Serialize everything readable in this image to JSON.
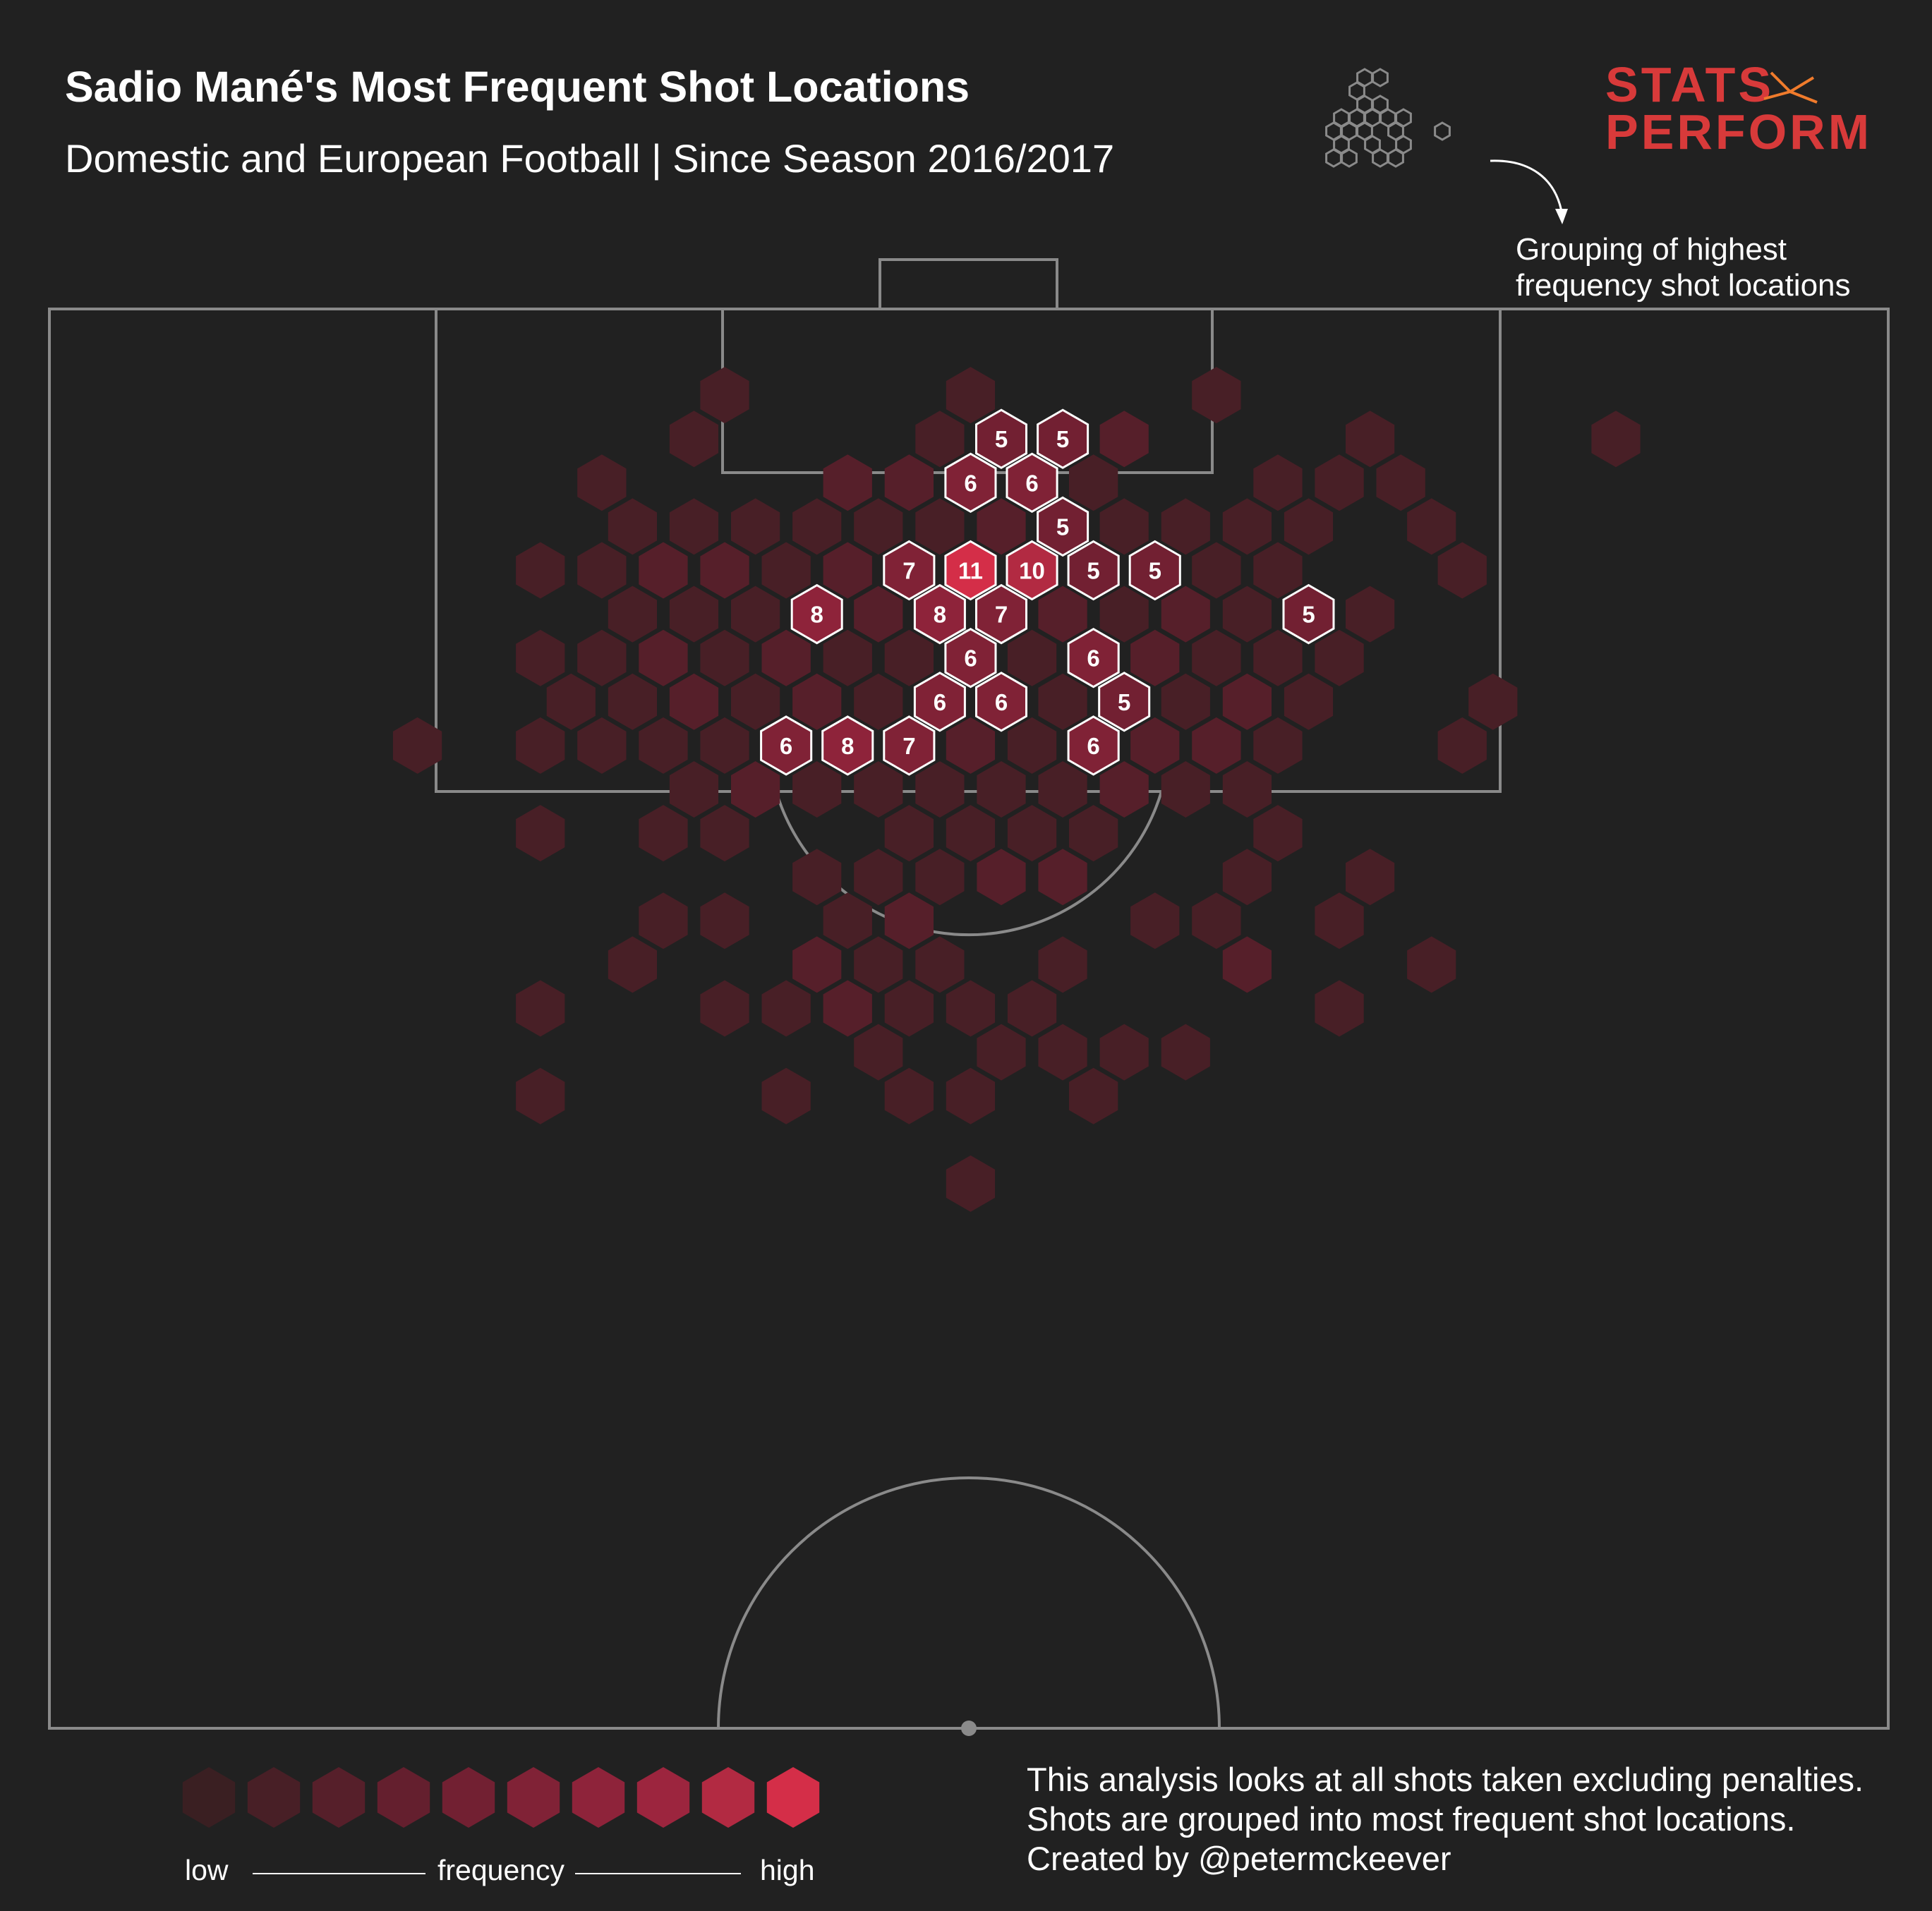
{
  "header": {
    "title": "Sadio Mané's Most Frequent Shot Locations",
    "subtitle": "Domestic and European Football | Since Season 2016/2017"
  },
  "logo": {
    "line1": "STATS",
    "line2": "PERFORM",
    "color": "#d83a3a",
    "accent": "#f07b2c"
  },
  "annotation": {
    "line1": "Grouping of highest",
    "line2": "frequency shot locations"
  },
  "legend": {
    "low": "low",
    "mid": "frequency",
    "high": "high",
    "colors": [
      "#3a1f22",
      "#481f26",
      "#561f2a",
      "#641f2e",
      "#722032",
      "#802236",
      "#8e233a",
      "#9c253e",
      "#b22a42",
      "#d42e48"
    ]
  },
  "footer": {
    "note": "This analysis looks at all shots taken excluding penalties. Shots are grouped into most frequent shot locations. Created by @petermckeever"
  },
  "colors": {
    "background": "#212121",
    "pitch_lines": "#8a8a8a",
    "highlight_stroke": "#ffffff"
  },
  "chart_data": {
    "type": "heatmap",
    "title": "Sadio Mané's Most Frequent Shot Locations",
    "subtitle": "Domestic and European Football | Since Season 2016/2017",
    "value_scale": [
      1,
      11
    ],
    "hexbins": [
      {
        "col": 6,
        "row": 1,
        "v": 2
      },
      {
        "col": 10,
        "row": 1,
        "v": 2
      },
      {
        "col": 14,
        "row": 1,
        "v": 2
      },
      {
        "col": 5,
        "row": 2,
        "v": 2
      },
      {
        "col": 9,
        "row": 2,
        "v": 2
      },
      {
        "col": 10,
        "row": 2,
        "v": 5
      },
      {
        "col": 11,
        "row": 2,
        "v": 5
      },
      {
        "col": 12,
        "row": 2,
        "v": 3
      },
      {
        "col": 16,
        "row": 2,
        "v": 2
      },
      {
        "col": 20,
        "row": 2,
        "v": 2
      },
      {
        "col": 4,
        "row": 3,
        "v": 2
      },
      {
        "col": 8,
        "row": 3,
        "v": 3
      },
      {
        "col": 9,
        "row": 3,
        "v": 3
      },
      {
        "col": 10,
        "row": 3,
        "v": 6
      },
      {
        "col": 11,
        "row": 3,
        "v": 6
      },
      {
        "col": 12,
        "row": 3,
        "v": 2
      },
      {
        "col": 15,
        "row": 3,
        "v": 2
      },
      {
        "col": 16,
        "row": 3,
        "v": 2
      },
      {
        "col": 17,
        "row": 3,
        "v": 2
      },
      {
        "col": 4,
        "row": 4,
        "v": 2
      },
      {
        "col": 5,
        "row": 4,
        "v": 2
      },
      {
        "col": 6,
        "row": 4,
        "v": 2
      },
      {
        "col": 7,
        "row": 4,
        "v": 2
      },
      {
        "col": 8,
        "row": 4,
        "v": 2
      },
      {
        "col": 9,
        "row": 4,
        "v": 2
      },
      {
        "col": 10,
        "row": 4,
        "v": 3
      },
      {
        "col": 11,
        "row": 4,
        "v": 5
      },
      {
        "col": 12,
        "row": 4,
        "v": 2
      },
      {
        "col": 13,
        "row": 4,
        "v": 2
      },
      {
        "col": 14,
        "row": 4,
        "v": 2
      },
      {
        "col": 15,
        "row": 4,
        "v": 2
      },
      {
        "col": 17,
        "row": 4,
        "v": 2
      },
      {
        "col": 3,
        "row": 5,
        "v": 2
      },
      {
        "col": 4,
        "row": 5,
        "v": 2
      },
      {
        "col": 5,
        "row": 5,
        "v": 3
      },
      {
        "col": 6,
        "row": 5,
        "v": 3
      },
      {
        "col": 7,
        "row": 5,
        "v": 2
      },
      {
        "col": 8,
        "row": 5,
        "v": 3
      },
      {
        "col": 9,
        "row": 5,
        "v": 7
      },
      {
        "col": 10,
        "row": 5,
        "v": 11
      },
      {
        "col": 11,
        "row": 5,
        "v": 10
      },
      {
        "col": 12,
        "row": 5,
        "v": 5
      },
      {
        "col": 13,
        "row": 5,
        "v": 5
      },
      {
        "col": 14,
        "row": 5,
        "v": 2
      },
      {
        "col": 15,
        "row": 5,
        "v": 2
      },
      {
        "col": 18,
        "row": 5,
        "v": 2
      },
      {
        "col": 4,
        "row": 6,
        "v": 2
      },
      {
        "col": 5,
        "row": 6,
        "v": 2
      },
      {
        "col": 6,
        "row": 6,
        "v": 2
      },
      {
        "col": 7,
        "row": 6,
        "v": 8
      },
      {
        "col": 8,
        "row": 6,
        "v": 3
      },
      {
        "col": 9,
        "row": 6,
        "v": 8
      },
      {
        "col": 10,
        "row": 6,
        "v": 7
      },
      {
        "col": 11,
        "row": 6,
        "v": 3
      },
      {
        "col": 12,
        "row": 6,
        "v": 2
      },
      {
        "col": 13,
        "row": 6,
        "v": 3
      },
      {
        "col": 14,
        "row": 6,
        "v": 2
      },
      {
        "col": 15,
        "row": 6,
        "v": 5
      },
      {
        "col": 16,
        "row": 6,
        "v": 2
      },
      {
        "col": 3,
        "row": 7,
        "v": 2
      },
      {
        "col": 4,
        "row": 7,
        "v": 2
      },
      {
        "col": 5,
        "row": 7,
        "v": 3
      },
      {
        "col": 6,
        "row": 7,
        "v": 2
      },
      {
        "col": 7,
        "row": 7,
        "v": 3
      },
      {
        "col": 8,
        "row": 7,
        "v": 2
      },
      {
        "col": 9,
        "row": 7,
        "v": 2
      },
      {
        "col": 10,
        "row": 7,
        "v": 6
      },
      {
        "col": 11,
        "row": 7,
        "v": 2
      },
      {
        "col": 12,
        "row": 7,
        "v": 6
      },
      {
        "col": 13,
        "row": 7,
        "v": 3
      },
      {
        "col": 14,
        "row": 7,
        "v": 2
      },
      {
        "col": 15,
        "row": 7,
        "v": 2
      },
      {
        "col": 16,
        "row": 7,
        "v": 2
      },
      {
        "col": 3,
        "row": 8,
        "v": 2
      },
      {
        "col": 4,
        "row": 8,
        "v": 2
      },
      {
        "col": 5,
        "row": 8,
        "v": 3
      },
      {
        "col": 6,
        "row": 8,
        "v": 2
      },
      {
        "col": 7,
        "row": 8,
        "v": 3
      },
      {
        "col": 8,
        "row": 8,
        "v": 2
      },
      {
        "col": 9,
        "row": 8,
        "v": 6
      },
      {
        "col": 10,
        "row": 8,
        "v": 6
      },
      {
        "col": 11,
        "row": 8,
        "v": 2
      },
      {
        "col": 12,
        "row": 8,
        "v": 5
      },
      {
        "col": 13,
        "row": 8,
        "v": 2
      },
      {
        "col": 14,
        "row": 8,
        "v": 3
      },
      {
        "col": 15,
        "row": 8,
        "v": 2
      },
      {
        "col": 18,
        "row": 8,
        "v": 2
      },
      {
        "col": 1,
        "row": 9,
        "v": 2
      },
      {
        "col": 3,
        "row": 9,
        "v": 2
      },
      {
        "col": 4,
        "row": 9,
        "v": 2
      },
      {
        "col": 5,
        "row": 9,
        "v": 2
      },
      {
        "col": 6,
        "row": 9,
        "v": 2
      },
      {
        "col": 7,
        "row": 9,
        "v": 6
      },
      {
        "col": 8,
        "row": 9,
        "v": 8
      },
      {
        "col": 9,
        "row": 9,
        "v": 7
      },
      {
        "col": 10,
        "row": 9,
        "v": 3
      },
      {
        "col": 11,
        "row": 9,
        "v": 2
      },
      {
        "col": 12,
        "row": 9,
        "v": 6
      },
      {
        "col": 13,
        "row": 9,
        "v": 3
      },
      {
        "col": 14,
        "row": 9,
        "v": 3
      },
      {
        "col": 15,
        "row": 9,
        "v": 2
      },
      {
        "col": 18,
        "row": 9,
        "v": 2
      },
      {
        "col": 5,
        "row": 10,
        "v": 2
      },
      {
        "col": 6,
        "row": 10,
        "v": 3
      },
      {
        "col": 7,
        "row": 10,
        "v": 2
      },
      {
        "col": 8,
        "row": 10,
        "v": 2
      },
      {
        "col": 9,
        "row": 10,
        "v": 2
      },
      {
        "col": 10,
        "row": 10,
        "v": 2
      },
      {
        "col": 11,
        "row": 10,
        "v": 2
      },
      {
        "col": 12,
        "row": 10,
        "v": 3
      },
      {
        "col": 13,
        "row": 10,
        "v": 2
      },
      {
        "col": 14,
        "row": 10,
        "v": 2
      },
      {
        "col": 3,
        "row": 11,
        "v": 2
      },
      {
        "col": 5,
        "row": 11,
        "v": 2
      },
      {
        "col": 6,
        "row": 11,
        "v": 2
      },
      {
        "col": 9,
        "row": 11,
        "v": 2
      },
      {
        "col": 10,
        "row": 11,
        "v": 2
      },
      {
        "col": 11,
        "row": 11,
        "v": 2
      },
      {
        "col": 12,
        "row": 11,
        "v": 2
      },
      {
        "col": 15,
        "row": 11,
        "v": 2
      },
      {
        "col": 7,
        "row": 12,
        "v": 2
      },
      {
        "col": 8,
        "row": 12,
        "v": 2
      },
      {
        "col": 9,
        "row": 12,
        "v": 2
      },
      {
        "col": 10,
        "row": 12,
        "v": 3
      },
      {
        "col": 11,
        "row": 12,
        "v": 3
      },
      {
        "col": 14,
        "row": 12,
        "v": 2
      },
      {
        "col": 16,
        "row": 12,
        "v": 2
      },
      {
        "col": 5,
        "row": 13,
        "v": 2
      },
      {
        "col": 6,
        "row": 13,
        "v": 2
      },
      {
        "col": 8,
        "row": 13,
        "v": 2
      },
      {
        "col": 9,
        "row": 13,
        "v": 3
      },
      {
        "col": 13,
        "row": 13,
        "v": 2
      },
      {
        "col": 14,
        "row": 13,
        "v": 2
      },
      {
        "col": 16,
        "row": 13,
        "v": 2
      },
      {
        "col": 4,
        "row": 14,
        "v": 2
      },
      {
        "col": 7,
        "row": 14,
        "v": 3
      },
      {
        "col": 8,
        "row": 14,
        "v": 2
      },
      {
        "col": 9,
        "row": 14,
        "v": 2
      },
      {
        "col": 11,
        "row": 14,
        "v": 2
      },
      {
        "col": 14,
        "row": 14,
        "v": 3
      },
      {
        "col": 17,
        "row": 14,
        "v": 2
      },
      {
        "col": 3,
        "row": 15,
        "v": 2
      },
      {
        "col": 6,
        "row": 15,
        "v": 2
      },
      {
        "col": 7,
        "row": 15,
        "v": 2
      },
      {
        "col": 8,
        "row": 15,
        "v": 3
      },
      {
        "col": 9,
        "row": 15,
        "v": 2
      },
      {
        "col": 10,
        "row": 15,
        "v": 2
      },
      {
        "col": 11,
        "row": 15,
        "v": 2
      },
      {
        "col": 16,
        "row": 15,
        "v": 2
      },
      {
        "col": 8,
        "row": 16,
        "v": 2
      },
      {
        "col": 10,
        "row": 16,
        "v": 2
      },
      {
        "col": 11,
        "row": 16,
        "v": 2
      },
      {
        "col": 12,
        "row": 16,
        "v": 2
      },
      {
        "col": 13,
        "row": 16,
        "v": 2
      },
      {
        "col": 3,
        "row": 17,
        "v": 2
      },
      {
        "col": 7,
        "row": 17,
        "v": 2
      },
      {
        "col": 9,
        "row": 17,
        "v": 2
      },
      {
        "col": 10,
        "row": 17,
        "v": 2
      },
      {
        "col": 12,
        "row": 17,
        "v": 2
      },
      {
        "col": 10,
        "row": 19,
        "v": 2
      }
    ],
    "highlighted_labels": [
      {
        "col": 10,
        "row": 2,
        "label": "5"
      },
      {
        "col": 11,
        "row": 2,
        "label": "5"
      },
      {
        "col": 10,
        "row": 3,
        "label": "6"
      },
      {
        "col": 11,
        "row": 3,
        "label": "6"
      },
      {
        "col": 11,
        "row": 4,
        "label": "5"
      },
      {
        "col": 9,
        "row": 5,
        "label": "7"
      },
      {
        "col": 10,
        "row": 5,
        "label": "11"
      },
      {
        "col": 11,
        "row": 5,
        "label": "10"
      },
      {
        "col": 12,
        "row": 5,
        "label": "5"
      },
      {
        "col": 13,
        "row": 5,
        "label": "5"
      },
      {
        "col": 7,
        "row": 6,
        "label": "8"
      },
      {
        "col": 9,
        "row": 6,
        "label": "8"
      },
      {
        "col": 10,
        "row": 6,
        "label": "7"
      },
      {
        "col": 15,
        "row": 6,
        "label": "5"
      },
      {
        "col": 10,
        "row": 7,
        "label": "6"
      },
      {
        "col": 12,
        "row": 7,
        "label": "6"
      },
      {
        "col": 9,
        "row": 8,
        "label": "6"
      },
      {
        "col": 10,
        "row": 8,
        "label": "6"
      },
      {
        "col": 12,
        "row": 8,
        "label": "5"
      },
      {
        "col": 7,
        "row": 9,
        "label": "6"
      },
      {
        "col": 8,
        "row": 9,
        "label": "8"
      },
      {
        "col": 9,
        "row": 9,
        "label": "7"
      },
      {
        "col": 12,
        "row": 9,
        "label": "6"
      }
    ]
  }
}
